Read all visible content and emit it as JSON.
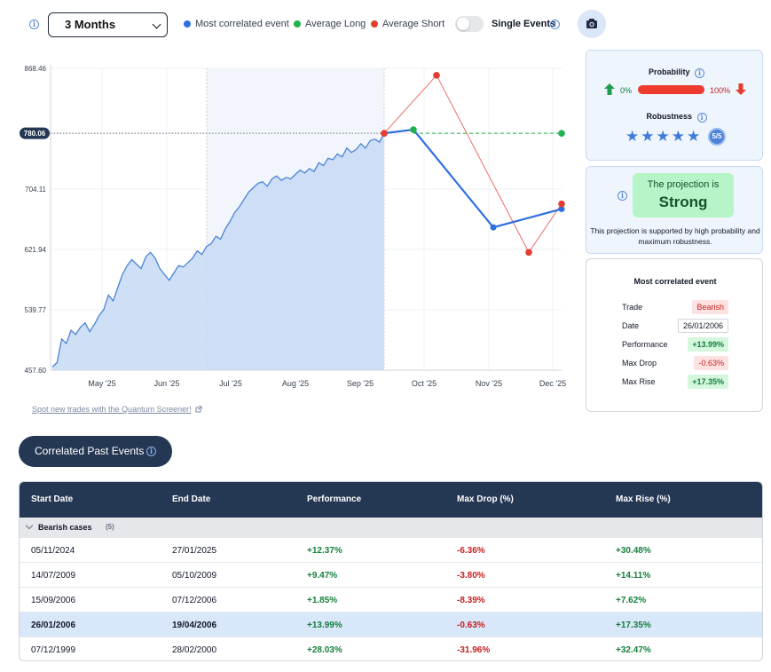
{
  "toolbar": {
    "period": "3 Months",
    "legend": [
      {
        "label": "Most correlated event",
        "color": "#2e6fe0"
      },
      {
        "label": "Average Long",
        "color": "#1fb24e"
      },
      {
        "label": "Average Short",
        "color": "#e43d30"
      }
    ],
    "toggle_label": "Single Events",
    "camera_icon": "camera-icon"
  },
  "chart_data": {
    "type": "line",
    "y_ticks": [
      "868.46",
      "780.06",
      "704.11",
      "621.94",
      "539.77",
      "457.60"
    ],
    "y_tick_values": [
      868.46,
      780.06,
      704.11,
      621.94,
      539.77,
      457.6
    ],
    "ylim": [
      457.6,
      868.46
    ],
    "x_ticks": [
      "May '25",
      "Jun '25",
      "Jul '25",
      "Aug '25",
      "Sep '25",
      "Oct '25",
      "Nov '25",
      "Dec '25"
    ],
    "current_price": "780.06",
    "price_history": [
      462,
      468,
      500,
      494,
      512,
      506,
      516,
      522,
      510,
      520,
      532,
      540,
      560,
      552,
      570,
      588,
      600,
      608,
      602,
      596,
      612,
      618,
      610,
      596,
      588,
      580,
      590,
      600,
      598,
      604,
      610,
      620,
      615,
      626,
      630,
      640,
      636,
      650,
      660,
      672,
      680,
      690,
      700,
      706,
      712,
      714,
      708,
      718,
      722,
      716,
      720,
      718,
      724,
      730,
      726,
      732,
      728,
      740,
      736,
      746,
      744,
      752,
      748,
      760,
      754,
      758,
      766,
      760,
      770,
      772,
      768,
      780
    ],
    "series": [
      {
        "name": "Most correlated event",
        "color": "#2e6fe0",
        "values": [
          780.06,
          785,
          652,
          677
        ]
      },
      {
        "name": "Average Long",
        "color": "#1fb24e",
        "values": [
          780.06,
          785,
          null,
          780.06
        ]
      },
      {
        "name": "Average Short",
        "color": "#e43d30",
        "values": [
          780.06,
          859,
          618,
          684
        ]
      }
    ]
  },
  "screener_link": "Spot new trades with the Quantum Screener!",
  "probability": {
    "title": "Probability",
    "left_value": "0%",
    "right_value": "100%",
    "fill": 1.0
  },
  "robustness": {
    "title": "Robustness",
    "stars": 5,
    "badge": "5/5"
  },
  "projection": {
    "line1": "The projection is",
    "line2": "Strong",
    "description": "This projection is supported by high probability and maximum robustness."
  },
  "most_correlated": {
    "title": "Most correlated event",
    "rows": [
      {
        "label": "Trade",
        "value": "Bearish",
        "style": "red"
      },
      {
        "label": "Date",
        "value": "26/01/2006",
        "style": "plain"
      },
      {
        "label": "Performance",
        "value": "+13.99%",
        "style": "green"
      },
      {
        "label": "Max Drop",
        "value": "-0.63%",
        "style": "red"
      },
      {
        "label": "Max Rise",
        "value": "+17.35%",
        "style": "green"
      }
    ]
  },
  "past_events": {
    "button_label": "Correlated Past Events",
    "headers": [
      "Start Date",
      "End Date",
      "Performance",
      "Max Drop (%)",
      "Max Rise (%)"
    ],
    "group_label": "Bearish cases",
    "group_count": "(5)",
    "rows": [
      [
        "05/11/2024",
        "27/01/2025",
        "+12.37%",
        "-6.36%",
        "+30.48%"
      ],
      [
        "14/07/2009",
        "05/10/2009",
        "+9.47%",
        "-3.80%",
        "+14.11%"
      ],
      [
        "15/09/2006",
        "07/12/2006",
        "+1.85%",
        "-8.39%",
        "+7.62%"
      ],
      [
        "26/01/2006",
        "19/04/2006",
        "+13.99%",
        "-0.63%",
        "+17.35%"
      ],
      [
        "07/12/1999",
        "28/02/2000",
        "+28.03%",
        "-31.96%",
        "+32.47%"
      ]
    ],
    "highlighted_row": 3
  }
}
